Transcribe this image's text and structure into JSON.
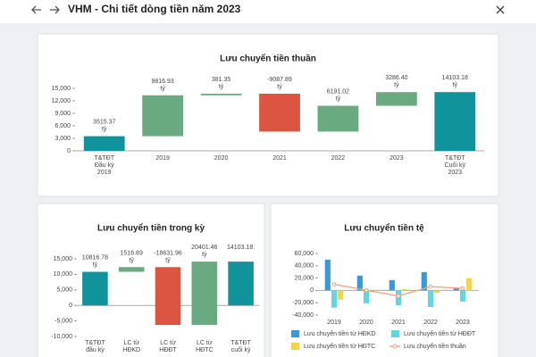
{
  "header": {
    "title": "VHM - Chi tiết dòng tiền năm 2023"
  },
  "chart_data": [
    {
      "type": "waterfall",
      "title": "Lưu chuyển tiền thuần",
      "categories": [
        "T&TĐT\nĐầu kỳ\n2019",
        "2019",
        "2020",
        "2021",
        "2022",
        "2023",
        "T&TĐT\nCuối kỳ\n2023"
      ],
      "values": [
        3515.37,
        9816.93,
        381.35,
        -9087.89,
        6191.02,
        3286.4,
        14103.18
      ],
      "value_labels": [
        "3515.37\ntỷ",
        "9816.93\ntỷ",
        "381.35\ntỷ",
        "-9087.89\ntỷ",
        "6191.02\ntỷ",
        "3286.40\ntỷ",
        "14103.18\ntỷ"
      ],
      "colors": {
        "total": "#10939b",
        "increase": "#6aaa80",
        "decrease": "#dc5442"
      },
      "ylim": [
        0,
        15000
      ],
      "yticks": [
        0,
        {
          "value": 3000,
          "label": "3,000"
        },
        {
          "value": 6000,
          "label": "6,000"
        },
        {
          "value": 9000,
          "label": "9,000"
        },
        {
          "value": 12000,
          "label": "12,000"
        },
        {
          "value": 15000,
          "label": "15,000"
        }
      ]
    },
    {
      "type": "waterfall",
      "title": "Lưu chuyển tiền trong kỳ",
      "categories": [
        "T&TĐT\nđầu kỳ",
        "LC từ\nHĐKD",
        "LC từ\nHĐĐT",
        "LC từ\nHĐTC",
        "T&TĐT\ncuối kỳ"
      ],
      "values": [
        10816.78,
        1516.89,
        -18631.96,
        20401.46,
        14103.18
      ],
      "value_labels": [
        "10816.78\ntỷ",
        "1516.89\ntỷ",
        "-18631.96\ntỷ",
        "20401.46\ntỷ",
        "14103.18."
      ],
      "colors": {
        "total": "#10939b",
        "increase": "#6aaa80",
        "decrease": "#dc5442"
      },
      "ylim": [
        -10000,
        15000
      ],
      "yticks": [
        {
          "value": -10000,
          "label": "-10,000"
        },
        {
          "value": -5000,
          "label": "-5,000"
        },
        0,
        {
          "value": 5000,
          "label": "5,000"
        },
        {
          "value": 10000,
          "label": "10,000"
        },
        {
          "value": 15000,
          "label": "15,000"
        }
      ]
    },
    {
      "type": "combo",
      "title": "Lưu chuyển tiền tệ",
      "categories": [
        "2019",
        "2020",
        "2021",
        "2022",
        "2023"
      ],
      "series": [
        {
          "name": "Lưu chuyển tiền từ HĐKD",
          "type": "bar",
          "color": "#3a9ad9",
          "values": [
            50000,
            24000,
            16700,
            29700,
            4000
          ]
        },
        {
          "name": "Lưu chuyển tiền từ HĐĐT",
          "type": "bar",
          "color": "#62d5e2",
          "values": [
            -28000,
            -21000,
            -24000,
            -27000,
            -18000
          ]
        },
        {
          "name": "Lưu chuyển tiền từ HĐTC",
          "type": "bar",
          "color": "#f4d24a",
          "values": [
            -15000,
            -3000,
            2000,
            -4000,
            20000
          ]
        },
        {
          "name": "Lưu chuyển tiền thuần",
          "type": "line",
          "color": "#f0a184",
          "values": [
            9816.93,
            381.35,
            -9087.89,
            6191.02,
            3286.4
          ]
        }
      ],
      "ylim": [
        -40000,
        60000
      ],
      "yticks": [
        {
          "value": -40000,
          "label": "-40,000"
        },
        {
          "value": -20000,
          "label": "-20,000"
        },
        0,
        {
          "value": 20000,
          "label": "20,000"
        },
        {
          "value": 40000,
          "label": "40,000"
        },
        {
          "value": 60000,
          "label": "60,000"
        }
      ]
    }
  ]
}
